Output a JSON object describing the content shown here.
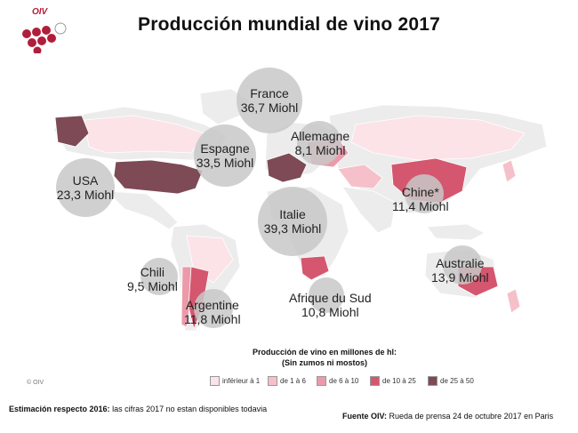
{
  "title": "Producción mundial de vino 2017",
  "logo": {
    "text": "OIV",
    "color": "#b01e3a"
  },
  "countries": [
    {
      "id": "france",
      "name": "France",
      "value": "36,7 Miohl"
    },
    {
      "id": "espagne",
      "name": "Espagne",
      "value": "33,5 Miohl"
    },
    {
      "id": "allemagne",
      "name": "Allemagne",
      "value": "8,1 Miohl"
    },
    {
      "id": "usa",
      "name": "USA",
      "value": "23,3 Miohl"
    },
    {
      "id": "italie",
      "name": "Italie",
      "value": "39,3 Miohl"
    },
    {
      "id": "chine",
      "name": "Chine*",
      "value": "11,4 Miohl"
    },
    {
      "id": "chili",
      "name": "Chili",
      "value": "9,5 Miohl"
    },
    {
      "id": "argentine",
      "name": "Argentine",
      "value": "11,8 Miohl"
    },
    {
      "id": "afrique",
      "name": "Afrique du Sud",
      "value": "10,8 Miohl"
    },
    {
      "id": "australie",
      "name": "Australie",
      "value": "13,9 Miohl"
    }
  ],
  "legend": {
    "title_line1": "Producción de vino en millones de hl:",
    "title_line2": "(Sin zumos ni mostos)",
    "items": [
      {
        "label": "inférieur à 1",
        "color": "#fbe3e8"
      },
      {
        "label": "de 1 à 6",
        "color": "#f5c0ca"
      },
      {
        "label": "de 6 à 10",
        "color": "#ec9aaa"
      },
      {
        "label": "de 10 à 25",
        "color": "#d4576f"
      },
      {
        "label": "de 25 à 50",
        "color": "#7d4a55"
      }
    ]
  },
  "copyright": "© OIV",
  "note_bold": "Estimación respecto 2016:",
  "note_text": " las cifras  2017 no estan disponibles  todavia",
  "source_bold": "Fuente OIV:",
  "source_text": " Rueda de prensa 24 de octubre 2017 en Paris"
}
